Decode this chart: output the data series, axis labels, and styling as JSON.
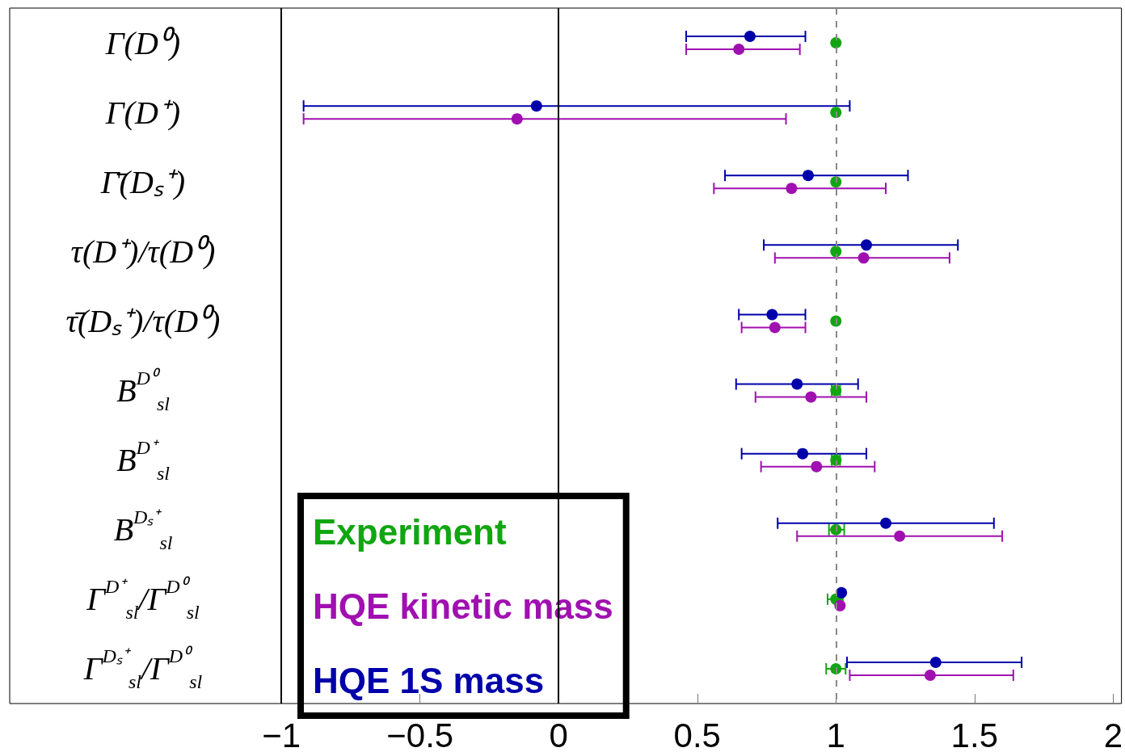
{
  "chart_data": {
    "type": "scatter",
    "categories": [
      "Γ(D⁰)",
      "Γ(D⁺)",
      "Γ̄(Dₛ⁺)",
      "τ(D⁺)/τ(D⁰)",
      "τ̄(Dₛ⁺)/τ(D⁰)",
      "B$^{D⁰}$$_{sl}$",
      "B$^{D⁺}$$_{sl}$",
      "B$^{Dₛ⁺}$$_{sl}$",
      "Γ$^{D⁺}$$_{sl}$/Γ$^{D⁰}$$_{sl}$",
      "Γ$^{Dₛ⁺}$$_{sl}$/Γ$^{D⁰}$$_{sl}$"
    ],
    "series": [
      {
        "name": "Experiment",
        "color": "#11a611",
        "values": [
          1,
          1,
          1,
          1,
          1,
          1,
          1,
          1,
          1,
          1
        ],
        "errors": [
          null,
          null,
          null,
          null,
          null,
          [
            0.985,
            1.015
          ],
          [
            0.985,
            1.015
          ],
          [
            0.975,
            1.03
          ],
          [
            0.97,
            1.025
          ],
          [
            0.965,
            1.035
          ]
        ]
      },
      {
        "name": "HQE kinetic mass",
        "color": "#a010b0",
        "values": [
          0.65,
          -0.15,
          0.84,
          1.1,
          0.78,
          0.91,
          0.93,
          1.23,
          1.015,
          1.34
        ],
        "errors": [
          [
            0.46,
            0.87
          ],
          [
            -0.92,
            0.82
          ],
          [
            0.56,
            1.18
          ],
          [
            0.78,
            1.41
          ],
          [
            0.66,
            0.89
          ],
          [
            0.71,
            1.11
          ],
          [
            0.73,
            1.14
          ],
          [
            0.86,
            1.6
          ],
          null,
          [
            1.05,
            1.64
          ]
        ]
      },
      {
        "name": "HQE 1S mass",
        "color": "#0000aa",
        "values": [
          0.69,
          -0.08,
          0.9,
          1.11,
          0.77,
          0.86,
          0.88,
          1.18,
          1.02,
          1.36
        ],
        "errors": [
          [
            0.46,
            0.89
          ],
          [
            -0.92,
            1.05
          ],
          [
            0.6,
            1.26
          ],
          [
            0.74,
            1.44
          ],
          [
            0.65,
            0.89
          ],
          [
            0.64,
            1.08
          ],
          [
            0.66,
            1.11
          ],
          [
            0.79,
            1.57
          ],
          null,
          [
            1.04,
            1.67
          ]
        ]
      }
    ],
    "orientation": "horizontal",
    "xlim": [
      -1.98,
      2.03
    ],
    "xticks": [
      {
        "value": -1,
        "label": "−1"
      },
      {
        "value": -0.5,
        "label": "−0.5"
      },
      0,
      0.5,
      1,
      1.5,
      2
    ],
    "ref_lines": [
      {
        "axis": "x",
        "value": -1,
        "color": "#000000",
        "line_style": "solid"
      },
      {
        "axis": "x",
        "value": 0,
        "color": "#000000",
        "line_style": "solid"
      },
      {
        "axis": "x",
        "value": 1,
        "color": "#888888",
        "line_style": "dashed"
      }
    ],
    "legend": "bottom left",
    "marker": "circle",
    "grid": false
  }
}
